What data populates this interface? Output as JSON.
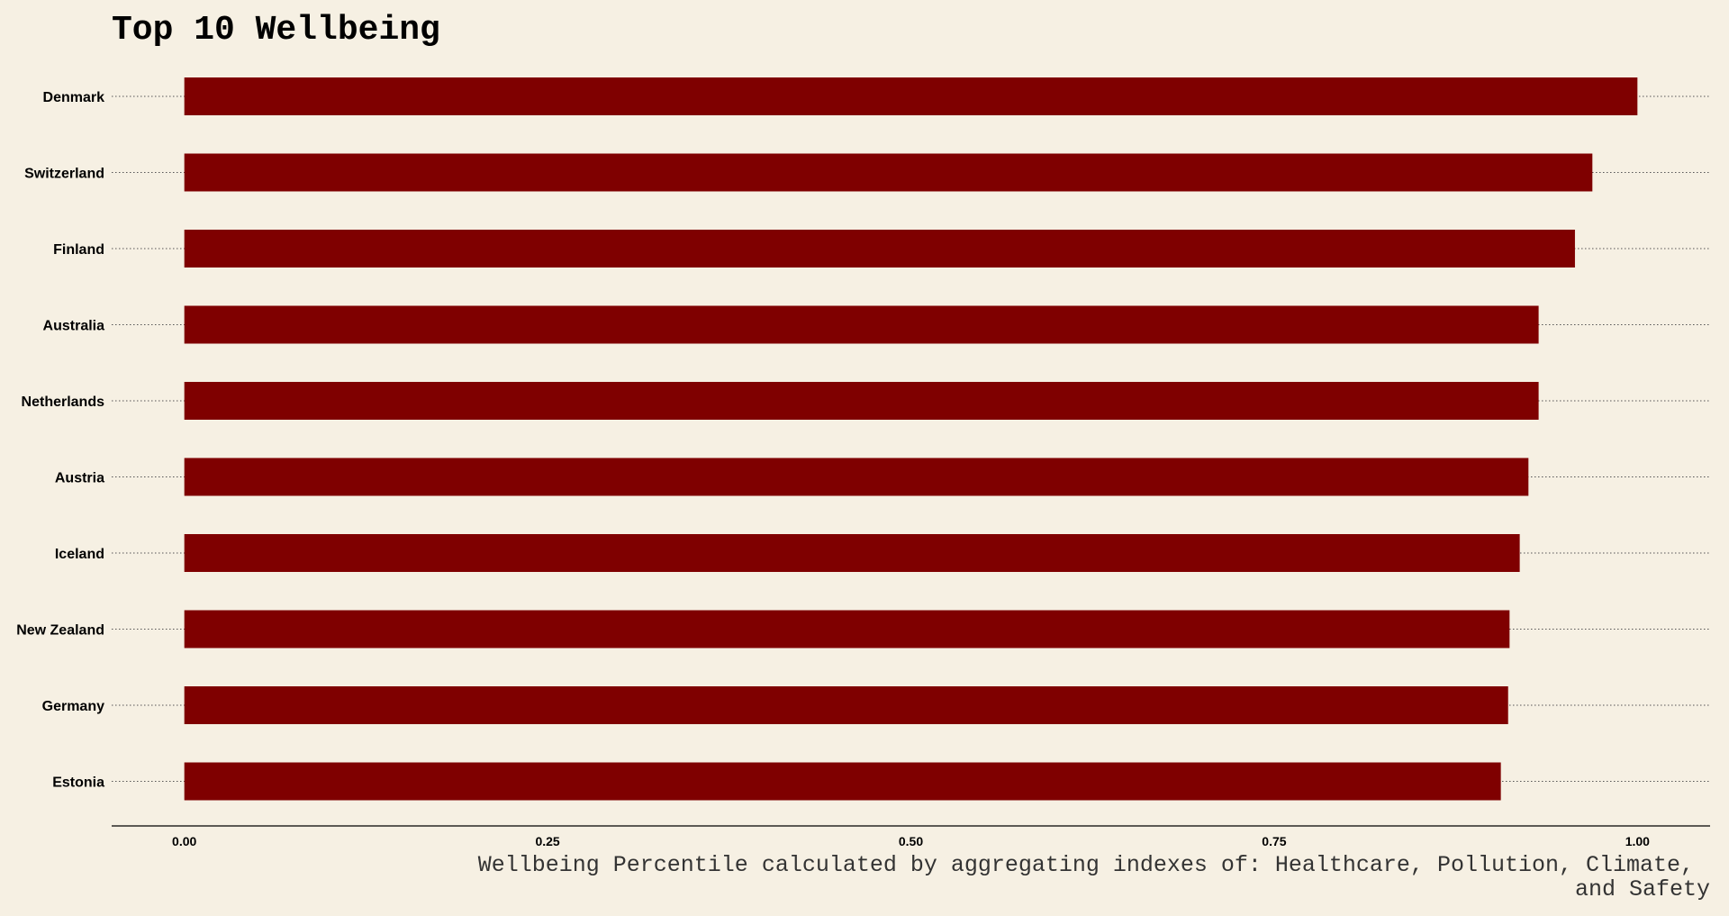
{
  "chart_data": {
    "type": "bar",
    "orientation": "horizontal",
    "title": "Top 10 Wellbeing",
    "caption_lines": [
      "Wellbeing Percentile calculated by aggregating indexes of: Healthcare, Pollution, Climate,",
      "and Safety"
    ],
    "categories": [
      "Denmark",
      "Switzerland",
      "Finland",
      "Australia",
      "Netherlands",
      "Austria",
      "Iceland",
      "New Zealand",
      "Germany",
      "Estonia"
    ],
    "values": [
      1.0,
      0.969,
      0.957,
      0.932,
      0.932,
      0.925,
      0.919,
      0.912,
      0.911,
      0.906
    ],
    "x_ticks": [
      "0.00",
      "0.25",
      "0.50",
      "0.75",
      "1.00"
    ],
    "xlim": [
      -0.05,
      1.05
    ],
    "grid": "dotted horizontal lines at each category",
    "colors": {
      "bar": "#7f0000",
      "background": "#f6f0e3",
      "text": "#000000",
      "grid": "#555555"
    }
  }
}
